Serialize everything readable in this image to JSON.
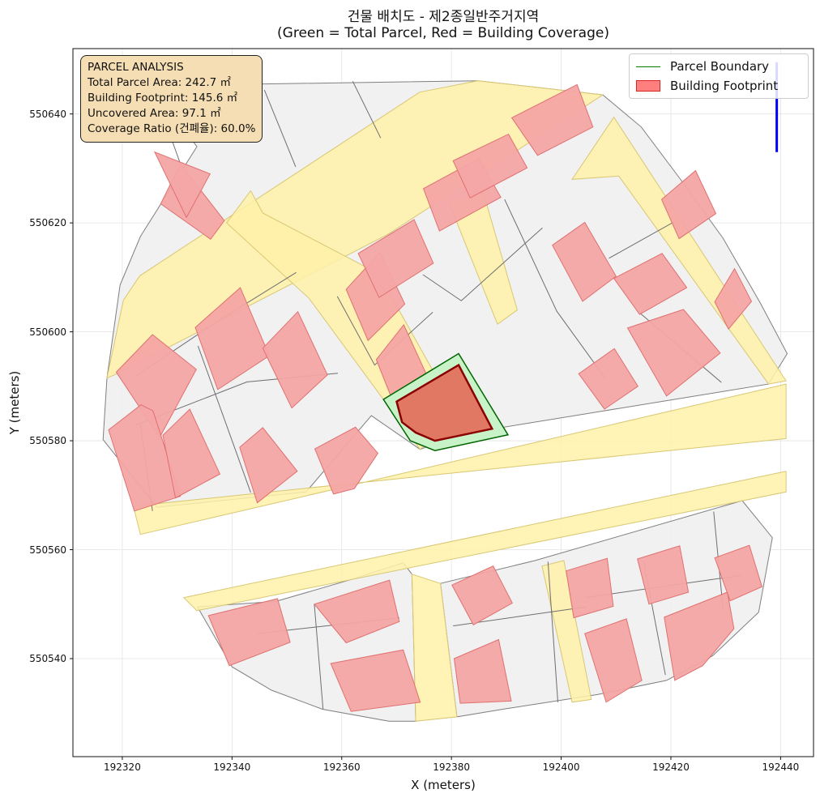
{
  "chart_data": {
    "type": "map",
    "title_line1": "건물 배치도 - 제2종일반주거지역",
    "title_line2": "(Green = Total Parcel, Red = Building Coverage)",
    "xlabel": "X (meters)",
    "ylabel": "Y (meters)",
    "xlim": [
      192311,
      192446
    ],
    "ylim": [
      550522,
      550652
    ],
    "x_ticks": [
      192320,
      192340,
      192360,
      192380,
      192400,
      192420,
      192440
    ],
    "y_ticks": [
      550540,
      550560,
      550580,
      550600,
      550620,
      550640
    ],
    "grid": true,
    "legend_position": "top-right",
    "legend": [
      {
        "label": "Parcel Boundary",
        "kind": "line",
        "color": "#008000"
      },
      {
        "label": "Building Footprint",
        "kind": "patch",
        "color": "#ff0000"
      }
    ],
    "annotation_lines": [
      "PARCEL ANALYSIS",
      "Total Parcel Area: 242.7 ㎡",
      "Building Footprint: 145.6 ㎡",
      "Uncovered Area: 97.1 ㎡",
      "Coverage Ratio (건폐율): 60.0%"
    ],
    "colors": {
      "road": "#fff1a8",
      "parcel_fill": "#f0f0f0",
      "parcel_edge": "#7f7f7f",
      "building": "#f4a5a5",
      "building_edge": "#e07070",
      "highlight_parcel_fill": "#c8f3c8",
      "highlight_parcel_edge": "#006400",
      "highlight_building_fill": "#e07863",
      "highlight_building_edge": "#8b0000",
      "north_arrow": "#0000ff"
    },
    "target_parcel": [
      [
        192367.6,
        550587.6
      ],
      [
        192381.3,
        550596.0
      ],
      [
        192390.3,
        550581.1
      ],
      [
        192377.0,
        550578.2
      ],
      [
        192372.5,
        550580.0
      ]
    ],
    "target_building": [
      [
        192370.0,
        550587.2
      ],
      [
        192381.3,
        550593.9
      ],
      [
        192387.4,
        550582.2
      ],
      [
        192377.0,
        550580.0
      ],
      [
        192373.5,
        550581.5
      ],
      [
        192371.0,
        550583.4
      ]
    ],
    "roads": [
      [
        [
          192317.2,
          550591.5
        ],
        [
          192320.2,
          550605.8
        ],
        [
          192323.2,
          550610.3
        ],
        [
          192374.2,
          550644.0
        ],
        [
          192384.8,
          550646.1
        ],
        [
          192407.6,
          550643.5
        ],
        [
          192368.4,
          550617.9
        ],
        [
          192319.0,
          550592.3
        ]
      ],
      [
        [
          192323.3,
          550562.8
        ],
        [
          192441.0,
          550590.4
        ],
        [
          192441.0,
          550580.4
        ],
        [
          192322.0,
          550568.0
        ]
      ],
      [
        [
          192331.2,
          550551.2
        ],
        [
          192441.0,
          550574.4
        ],
        [
          192441.0,
          550570.6
        ],
        [
          192333.6,
          550548.8
        ]
      ],
      [
        [
          192372.8,
          550555.5
        ],
        [
          192373.5,
          550528.5
        ],
        [
          192381.0,
          550529.3
        ],
        [
          192378.0,
          550553.8
        ]
      ],
      [
        [
          192343.4,
          550625.9
        ],
        [
          192345.6,
          550621.8
        ],
        [
          192366.7,
          550610.7
        ],
        [
          192380.9,
          550585.2
        ],
        [
          192374.3,
          550578.4
        ],
        [
          192354.0,
          550606.2
        ],
        [
          192339.0,
          550620.0
        ]
      ],
      [
        [
          192409.6,
          550639.4
        ],
        [
          192441.0,
          550591.0
        ],
        [
          192437.8,
          550590.4
        ],
        [
          192410.5,
          550628.6
        ],
        [
          192402.0,
          550628.0
        ]
      ],
      [
        [
          192379.6,
          550623.6
        ],
        [
          192388.4,
          550601.4
        ],
        [
          192392.0,
          550604.0
        ],
        [
          192385.8,
          550625.6
        ]
      ],
      [
        [
          192396.5,
          550557.0
        ],
        [
          192402.0,
          550532.0
        ],
        [
          192405.5,
          550532.5
        ],
        [
          192400.5,
          550558.0
        ]
      ]
    ],
    "parcel_regions": [
      [
        [
          192325.5,
          550645.2
        ],
        [
          192384.8,
          550646.1
        ],
        [
          192407.6,
          550643.5
        ],
        [
          192414.6,
          550637.6
        ],
        [
          192421.6,
          550628.2
        ],
        [
          192429.5,
          550617.2
        ],
        [
          192436.3,
          550605.3
        ],
        [
          192441.2,
          550596.0
        ],
        [
          192437.8,
          550590.4
        ],
        [
          192380.5,
          550581.0
        ],
        [
          192374.3,
          550578.4
        ],
        [
          192365.4,
          550584.6
        ],
        [
          192353.5,
          550570.6
        ],
        [
          192326.3,
          550567.8
        ],
        [
          192316.5,
          550580.2
        ],
        [
          192317.2,
          550591.5
        ],
        [
          192319.6,
          550608.6
        ],
        [
          192323.3,
          550617.5
        ],
        [
          192333.6,
          550634.0
        ]
      ],
      [
        [
          192348.0,
          550550.5
        ],
        [
          192362.0,
          550554.6
        ],
        [
          192371.2,
          550557.6
        ],
        [
          192372.8,
          550555.5
        ],
        [
          192373.5,
          550528.5
        ],
        [
          192368.6,
          550528.5
        ],
        [
          192356.5,
          550530.7
        ],
        [
          192347.2,
          550534.2
        ],
        [
          192340.0,
          550538.5
        ],
        [
          192333.7,
          550549.5
        ]
      ],
      [
        [
          192378.0,
          550553.8
        ],
        [
          192395.2,
          550558.0
        ],
        [
          192433.0,
          550569.0
        ],
        [
          192438.5,
          550562.2
        ],
        [
          192436.0,
          550548.5
        ],
        [
          192427.6,
          550540.5
        ],
        [
          192419.2,
          550536.0
        ],
        [
          192406.6,
          550533.4
        ],
        [
          192390.0,
          550530.8
        ],
        [
          192381.0,
          550529.3
        ]
      ]
    ],
    "buildings": [
      [
        [
          192330.6,
          550630.8
        ],
        [
          192327.0,
          550623.5
        ],
        [
          192336.1,
          550617.0
        ],
        [
          192338.6,
          550620.4
        ]
      ],
      [
        [
          192331.7,
          550621.0
        ],
        [
          192336.0,
          550629.0
        ],
        [
          192325.9,
          550633.0
        ]
      ],
      [
        [
          192318.9,
          550592.6
        ],
        [
          192325.5,
          550599.5
        ],
        [
          192333.5,
          550593.1
        ],
        [
          192326.8,
          550580.6
        ]
      ],
      [
        [
          192317.5,
          550582.0
        ],
        [
          192323.4,
          550586.6
        ],
        [
          192325.6,
          550585.5
        ],
        [
          192330.6,
          550569.8
        ],
        [
          192322.2,
          550567.1
        ]
      ],
      [
        [
          192327.4,
          550581.0
        ],
        [
          192332.3,
          550585.8
        ],
        [
          192337.8,
          550573.9
        ],
        [
          192329.7,
          550569.5
        ]
      ],
      [
        [
          192333.3,
          550600.8
        ],
        [
          192341.5,
          550608.1
        ],
        [
          192346.8,
          550595.6
        ],
        [
          192337.4,
          550589.4
        ]
      ],
      [
        [
          192345.6,
          550597.0
        ],
        [
          192352.0,
          550603.7
        ],
        [
          192357.4,
          550592.1
        ],
        [
          192350.9,
          550586.0
        ]
      ],
      [
        [
          192341.4,
          550578.8
        ],
        [
          192345.6,
          550582.4
        ],
        [
          192351.9,
          550574.4
        ],
        [
          192344.6,
          550568.6
        ]
      ],
      [
        [
          192355.1,
          550578.5
        ],
        [
          192362.5,
          550582.5
        ],
        [
          192366.6,
          550577.7
        ],
        [
          192362.3,
          550571.2
        ],
        [
          192358.5,
          550570.2
        ]
      ],
      [
        [
          192360.8,
          550607.8
        ],
        [
          192367.0,
          550614.6
        ],
        [
          192371.5,
          550605.1
        ],
        [
          192364.8,
          550598.4
        ]
      ],
      [
        [
          192366.3,
          550594.9
        ],
        [
          192371.3,
          550601.3
        ],
        [
          192375.6,
          550591.8
        ],
        [
          192369.9,
          550585.8
        ]
      ],
      [
        [
          192363.0,
          550614.4
        ],
        [
          192373.2,
          550620.6
        ],
        [
          192376.7,
          550612.6
        ],
        [
          192366.8,
          550606.3
        ]
      ],
      [
        [
          192374.9,
          550626.3
        ],
        [
          192385.0,
          550631.8
        ],
        [
          192389.0,
          550624.7
        ],
        [
          192377.8,
          550618.5
        ]
      ],
      [
        [
          192380.3,
          550631.4
        ],
        [
          192390.4,
          550636.3
        ],
        [
          192393.8,
          550630.1
        ],
        [
          192383.4,
          550624.6
        ]
      ],
      [
        [
          192391.0,
          550639.3
        ],
        [
          192402.9,
          550645.4
        ],
        [
          192405.8,
          550637.6
        ],
        [
          192395.7,
          550632.4
        ]
      ],
      [
        [
          192398.4,
          550615.9
        ],
        [
          192404.3,
          550620.1
        ],
        [
          192410.0,
          550610.2
        ],
        [
          192403.9,
          550605.6
        ]
      ],
      [
        [
          192409.6,
          550609.8
        ],
        [
          192418.4,
          550614.4
        ],
        [
          192422.9,
          550608.1
        ],
        [
          192414.3,
          550603.2
        ]
      ],
      [
        [
          192412.1,
          550600.7
        ],
        [
          192422.3,
          550604.1
        ],
        [
          192429.0,
          550596.1
        ],
        [
          192419.2,
          550588.2
        ]
      ],
      [
        [
          192403.2,
          550592.3
        ],
        [
          192409.7,
          550596.9
        ],
        [
          192414.0,
          550590.0
        ],
        [
          192407.9,
          550585.8
        ]
      ],
      [
        [
          192418.3,
          550624.3
        ],
        [
          192424.5,
          550629.6
        ],
        [
          192428.2,
          550621.7
        ],
        [
          192421.5,
          550617.1
        ]
      ],
      [
        [
          192428.0,
          550605.5
        ],
        [
          192431.6,
          550611.6
        ],
        [
          192434.7,
          550605.6
        ],
        [
          192430.5,
          550600.5
        ]
      ],
      [
        [
          192335.7,
          550547.9
        ],
        [
          192348.3,
          550551.0
        ],
        [
          192350.6,
          550543.0
        ],
        [
          192339.5,
          550538.7
        ]
      ],
      [
        [
          192355.0,
          550550.0
        ],
        [
          192368.7,
          550554.4
        ],
        [
          192370.5,
          550546.8
        ],
        [
          192360.8,
          550542.9
        ]
      ],
      [
        [
          192358.0,
          550539.1
        ],
        [
          192371.2,
          550541.6
        ],
        [
          192374.3,
          550532.0
        ],
        [
          192361.7,
          550530.3
        ]
      ],
      [
        [
          192380.1,
          550553.5
        ],
        [
          192387.6,
          550557.0
        ],
        [
          192391.1,
          550550.2
        ],
        [
          192384.0,
          550546.2
        ]
      ],
      [
        [
          192380.5,
          550540.0
        ],
        [
          192388.6,
          550543.5
        ],
        [
          192390.9,
          550532.2
        ],
        [
          192381.6,
          550531.8
        ]
      ],
      [
        [
          192400.9,
          550556.1
        ],
        [
          192408.4,
          550558.4
        ],
        [
          192409.5,
          550549.6
        ],
        [
          192402.3,
          550547.5
        ]
      ],
      [
        [
          192404.3,
          550544.6
        ],
        [
          192411.9,
          550547.3
        ],
        [
          192414.7,
          550536.0
        ],
        [
          192408.2,
          550532.0
        ]
      ],
      [
        [
          192413.9,
          550558.3
        ],
        [
          192421.6,
          550560.7
        ],
        [
          192423.2,
          550552.2
        ],
        [
          192416.0,
          550550.0
        ]
      ],
      [
        [
          192418.8,
          550547.6
        ],
        [
          192430.3,
          550552.2
        ],
        [
          192431.5,
          550545.5
        ],
        [
          192425.8,
          550538.7
        ],
        [
          192420.7,
          550536.0
        ]
      ],
      [
        [
          192428.0,
          550558.5
        ],
        [
          192434.3,
          550560.8
        ],
        [
          192436.6,
          550553.2
        ],
        [
          192430.8,
          550550.6
        ]
      ]
    ],
    "parcel_lines": [
      [
        [
          192325.5,
          550645.2
        ],
        [
          192330.6,
          550630.8
        ]
      ],
      [
        [
          192345.9,
          550644.4
        ],
        [
          192351.6,
          550630.3
        ]
      ],
      [
        [
          192362.0,
          550646.0
        ],
        [
          192367.1,
          550635.6
        ]
      ],
      [
        [
          192333.8,
          550597.4
        ],
        [
          192343.4,
          550570.5
        ]
      ],
      [
        [
          192322.5,
          550591.9
        ],
        [
          192337.3,
          550601.9
        ],
        [
          192351.7,
          550610.9
        ]
      ],
      [
        [
          192322.5,
          550582.9
        ],
        [
          192342.7,
          550590.8
        ],
        [
          192359.3,
          550592.4
        ]
      ],
      [
        [
          192325.5,
          550567.1
        ],
        [
          192323.3,
          550583.0
        ]
      ],
      [
        [
          192359.2,
          550606.5
        ],
        [
          192366.0,
          550593.9
        ],
        [
          192376.6,
          550603.6
        ]
      ],
      [
        [
          192374.8,
          550610.5
        ],
        [
          192381.8,
          550605.7
        ],
        [
          192396.6,
          550619.1
        ]
      ],
      [
        [
          192389.7,
          550624.3
        ],
        [
          192399.2,
          550603.8
        ],
        [
          192408.1,
          550591.4
        ]
      ],
      [
        [
          192408.7,
          550613.5
        ],
        [
          192420.6,
          550620.2
        ]
      ],
      [
        [
          192414.3,
          550603.5
        ],
        [
          192429.2,
          550590.7
        ]
      ],
      [
        [
          192344.6,
          550544.6
        ],
        [
          192370.5,
          550547.5
        ]
      ],
      [
        [
          192355.0,
          550550.0
        ],
        [
          192356.6,
          550530.7
        ]
      ],
      [
        [
          192380.3,
          550546.0
        ],
        [
          192404.6,
          550549.5
        ]
      ],
      [
        [
          192397.6,
          550557.8
        ],
        [
          192399.4,
          550532.0
        ]
      ],
      [
        [
          192415.0,
          550558.0
        ],
        [
          192419.0,
          550537.0
        ]
      ],
      [
        [
          192427.8,
          550567.0
        ],
        [
          192429.5,
          550549.2
        ]
      ],
      [
        [
          192404.4,
          550551.2
        ],
        [
          192433.0,
          550555.3
        ]
      ]
    ],
    "north_arrow": {
      "x": 192439.3,
      "y_from": 550633.0,
      "y_to": 550649.5
    }
  }
}
